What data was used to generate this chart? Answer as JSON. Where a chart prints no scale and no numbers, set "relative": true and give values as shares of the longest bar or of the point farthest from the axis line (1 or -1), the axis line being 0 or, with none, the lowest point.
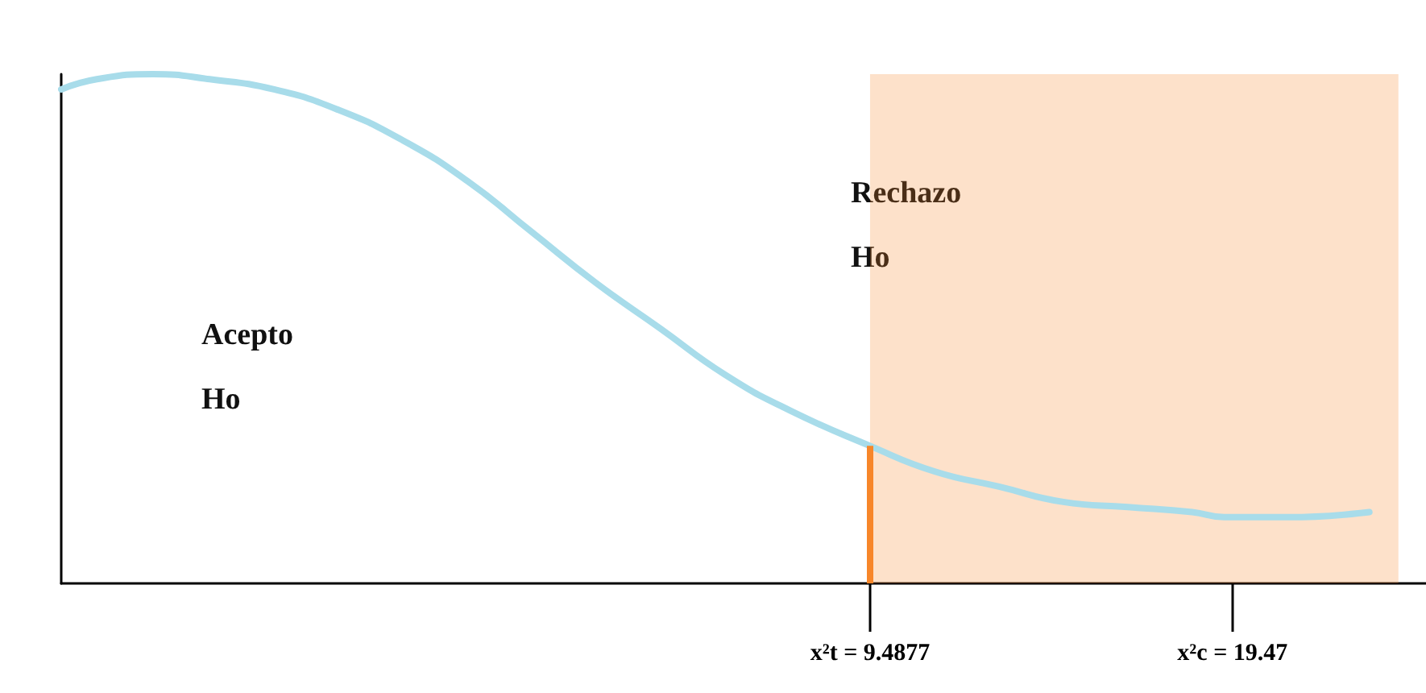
{
  "chart_data": {
    "type": "line",
    "relative": true,
    "color": "#a8dcea",
    "marker": "none",
    "tick_labels": "x",
    "grid": false,
    "x": [
      -12.79,
      -11.81,
      -10.26,
      -8.7,
      -6.93,
      -5.16,
      -3.38,
      -1.6,
      0.17,
      1.94,
      3.72,
      5.49,
      7.27,
      9.4877,
      11.26,
      13.04,
      14.81,
      16.59,
      18.36,
      19.25,
      21.02,
      23.24
    ],
    "values": [
      0.97,
      0.99,
      1,
      0.99,
      0.97,
      0.93,
      0.87,
      0.79,
      0.69,
      0.59,
      0.5,
      0.41,
      0.34,
      0.27,
      0.22,
      0.19,
      0.16,
      0.15,
      0.14,
      0.13,
      0.13,
      0.14
    ],
    "xlim": [
      -12.79,
      24.8
    ],
    "xticks": [
      {
        "value": 9.4877,
        "label": "x²t = 9.4877"
      },
      {
        "value": 19.47,
        "label": "x²c = 19.47"
      }
    ],
    "ref_lines": [
      {
        "axis": "x",
        "value": 9.4877,
        "color": "#f7862a"
      }
    ],
    "bands": [
      {
        "axis": "x",
        "from": 9.4877,
        "to": 24.04,
        "color": "#f7862a"
      }
    ],
    "annotations": [
      "Acepto\nHo",
      "Rechazo\nHo"
    ]
  }
}
